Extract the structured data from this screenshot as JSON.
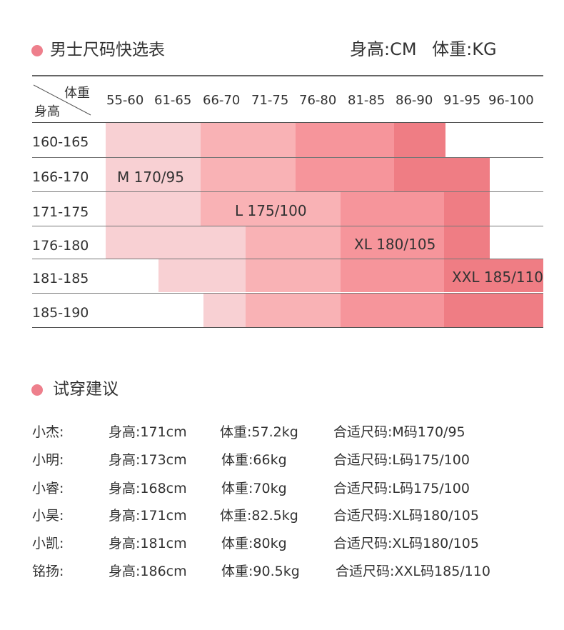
{
  "header": {
    "title": "男士尺码快选表",
    "units": "身高:CM 体重:KG"
  },
  "table": {
    "corner_weight": "体重",
    "corner_height": "身高",
    "weight_columns": [
      "55-60",
      "61-65",
      "66-70",
      "71-75",
      "76-80",
      "81-85",
      "86-90",
      "91-95",
      "96-100"
    ],
    "height_rows": [
      "160-165",
      "166-170",
      "171-175",
      "176-180",
      "181-185",
      "185-190"
    ],
    "size_labels": {
      "m": "M 170/95",
      "l": "L 175/100",
      "xl": "XL 180/105",
      "xxl": "XXL 185/110"
    },
    "colors": {
      "M": "#f8d0d3",
      "L": "#f9b2b5",
      "XL": "#f6959b",
      "XXL": "#ef7d84",
      "accent_dot": "#ee7f8c"
    }
  },
  "advice": {
    "title": "试穿建议",
    "rows": [
      {
        "name": "小杰:",
        "height": "身高:171cm",
        "weight": "体重:57.2kg",
        "size": "合适尺码:M码170/95"
      },
      {
        "name": "小明:",
        "height": "身高:173cm",
        "weight": "体重:66kg",
        "size": "合适尺码:L码175/100"
      },
      {
        "name": "小睿:",
        "height": "身高:168cm",
        "weight": "体重:70kg",
        "size": "合适尺码:L码175/100"
      },
      {
        "name": "小昊:",
        "height": "身高:171cm",
        "weight": "体重:82.5kg",
        "size": "合适尺码:XL码180/105"
      },
      {
        "name": "小凯:",
        "height": "身高:181cm",
        "weight": "体重:80kg",
        "size": "合适尺码:XL码180/105"
      },
      {
        "name": "铭扬:",
        "height": "身高:186cm",
        "weight": "体重:90.5kg",
        "size": "合适尺码:XXL码185/110"
      }
    ]
  }
}
